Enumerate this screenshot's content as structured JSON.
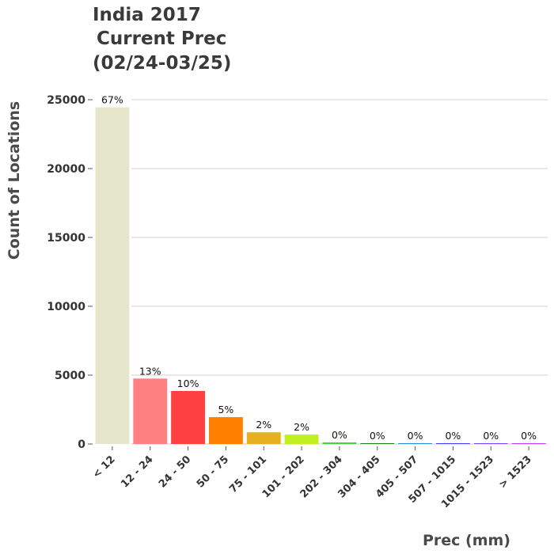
{
  "chart_data": {
    "type": "bar",
    "title_lines": [
      "India 2017",
      "Current Prec",
      "(02/24-03/25)"
    ],
    "xlabel": "Prec (mm)",
    "ylabel": "Count of Locations",
    "ylim": [
      0,
      25000
    ],
    "yticks": [
      0,
      5000,
      10000,
      15000,
      20000,
      25000
    ],
    "ytick_labels": [
      "0",
      "5000",
      "10000",
      "15000",
      "20000",
      "25000"
    ],
    "grid": true,
    "categories": [
      "< 12",
      "12 - 24",
      "24 - 50",
      "50 - 75",
      "75 - 101",
      "101 - 202",
      "202 - 304",
      "304 - 405",
      "405 - 507",
      "507 - 1015",
      "1015 - 1523",
      "> 1523"
    ],
    "values": [
      24450,
      4750,
      3850,
      1950,
      850,
      680,
      110,
      40,
      25,
      3,
      2,
      1
    ],
    "data_labels": [
      "67%",
      "13%",
      "10%",
      "5%",
      "2%",
      "2%",
      "0%",
      "0%",
      "0%",
      "0%",
      "0%",
      "0%"
    ],
    "colors": [
      "#e6e6cc",
      "#ff8080",
      "#ff4040",
      "#ff8000",
      "#e6b020",
      "#c0f020",
      "#40d040",
      "#208020",
      "#2090e0",
      "#4040ff",
      "#8040ff",
      "#c040ff"
    ]
  }
}
